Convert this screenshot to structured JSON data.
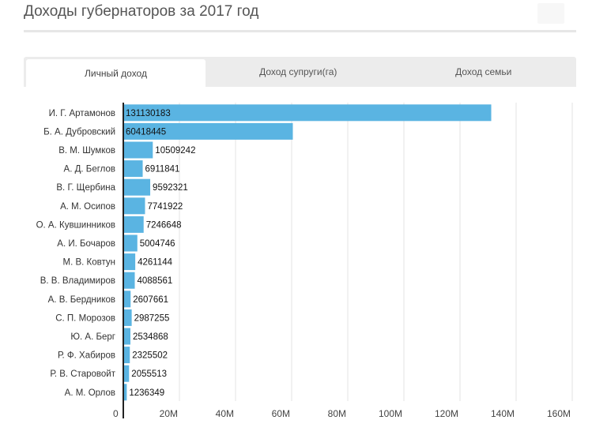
{
  "header": {
    "title": "Доходы губернаторов за 2017 год"
  },
  "tabs": [
    {
      "label": "Личный доход",
      "active": true
    },
    {
      "label": "Доход супруги(га)",
      "active": false
    },
    {
      "label": "Доход семьи",
      "active": false
    }
  ],
  "colors": {
    "bar": "#5ab4e2",
    "grid": "#e3e3e3",
    "axis": "#222222"
  },
  "chart_data": {
    "type": "bar",
    "orientation": "horizontal",
    "categories": [
      "И. Г. Артамонов",
      "Б. А. Дубровский",
      "В. М. Шумков",
      "А. Д. Беглов",
      "В. Г. Щербина",
      "А. М. Осипов",
      "О. А. Кувшинников",
      "А. И. Бочаров",
      "М. В. Ковтун",
      "В. В. Владимиров",
      "А. В. Бердников",
      "С. П. Морозов",
      "Ю. А. Берг",
      "Р. Ф. Хабиров",
      "Р. В. Старовойт",
      "А. М. Орлов"
    ],
    "values": [
      131130183,
      60418445,
      10509242,
      6911841,
      9592321,
      7741922,
      7246648,
      5004746,
      4261144,
      4088561,
      2607661,
      2987255,
      2534868,
      2325502,
      2055513,
      1236349
    ],
    "value_labels": [
      "131130183",
      "60418445",
      "10509242",
      "6911841",
      "9592321",
      "7741922",
      "7246648",
      "5004746",
      "4261144",
      "4088561",
      "2607661",
      "2987255",
      "2534868",
      "2325502",
      "2055513",
      "1236349"
    ],
    "xlim": [
      0,
      160000000
    ],
    "ticks": [
      0,
      20000000,
      40000000,
      60000000,
      80000000,
      100000000,
      120000000,
      140000000,
      160000000
    ],
    "tick_labels": [
      "0",
      "20M",
      "40M",
      "60M",
      "80M",
      "100M",
      "120M",
      "140M",
      "160M"
    ],
    "grid": true,
    "title": "",
    "xlabel": "",
    "ylabel": ""
  }
}
